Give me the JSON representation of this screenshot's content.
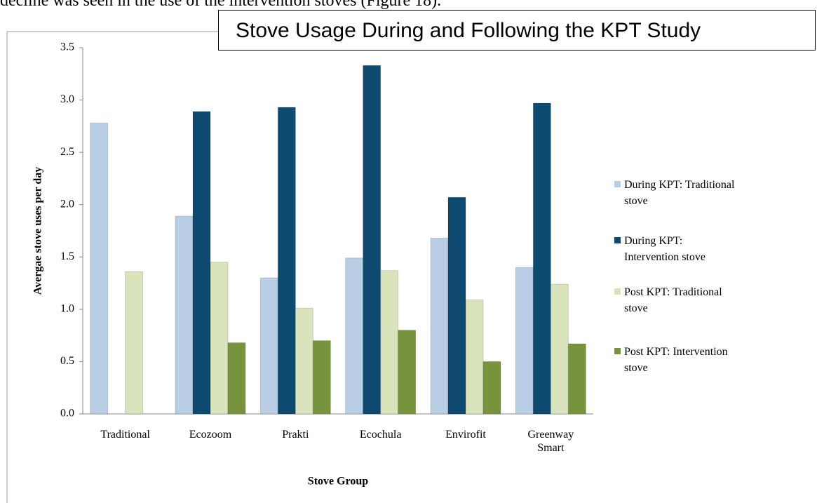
{
  "document_text": "decline was seen in the use of the intervention stoves (Figure 18).",
  "chart_data": {
    "type": "bar",
    "title": "Stove Usage During and Following the KPT Study",
    "x_label": "Stove Group",
    "y_label": "Avergae stove uses per day",
    "categories": [
      "Traditional",
      "Ecozoom",
      "Prakti",
      "Ecochula",
      "Envirofit",
      "Greenway Smart"
    ],
    "series": [
      {
        "name": "During KPT: Traditional stove",
        "color": "#b9cde5",
        "values": [
          2.78,
          1.89,
          1.3,
          1.49,
          1.68,
          1.4
        ]
      },
      {
        "name": "During KPT: Intervention stove",
        "color": "#0e4a6f",
        "values": [
          null,
          2.89,
          2.93,
          3.33,
          2.07,
          2.97
        ]
      },
      {
        "name": "Post KPT: Traditional stove",
        "color": "#d9e4bd",
        "values": [
          1.36,
          1.45,
          1.01,
          1.37,
          1.09,
          1.24
        ]
      },
      {
        "name": "Post KPT: Intervention stove",
        "color": "#77933c",
        "values": [
          null,
          0.68,
          0.7,
          0.8,
          0.5,
          0.67
        ]
      }
    ],
    "ylim": [
      0,
      3.5
    ],
    "yticks": [
      {
        "value": 0,
        "label": "0.0"
      },
      0.5,
      {
        "value": 1,
        "label": "1.0"
      },
      1.5,
      {
        "value": 2,
        "label": "2.0"
      },
      2.5,
      {
        "value": 3,
        "label": "3.0"
      },
      3.5
    ],
    "grid": false,
    "legend": "right"
  }
}
